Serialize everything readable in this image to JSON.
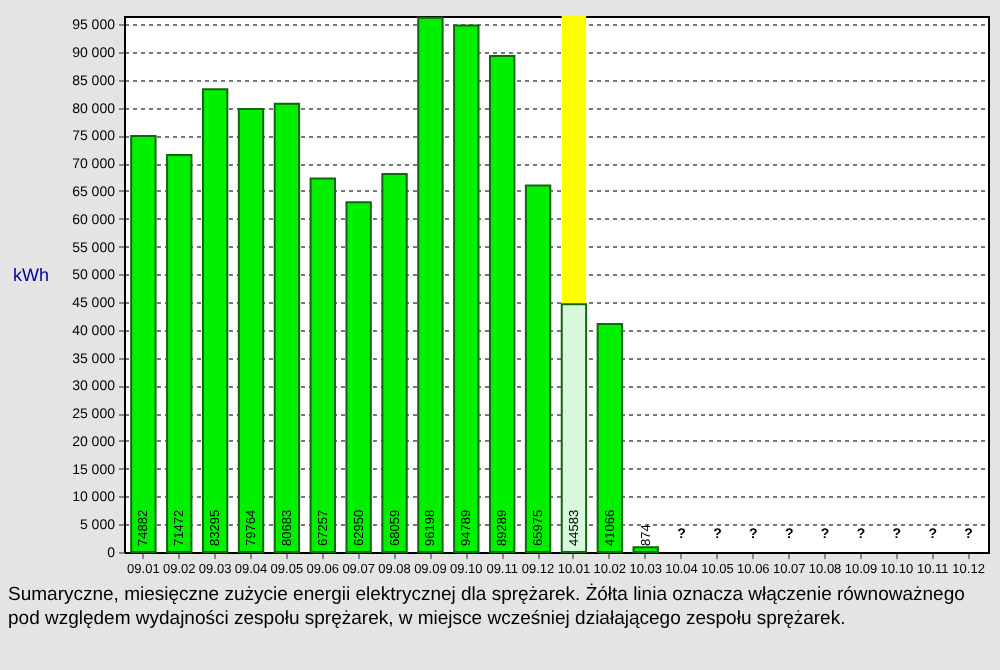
{
  "chart_data": {
    "type": "bar",
    "ylabel": "kWh",
    "categories": [
      "09.01",
      "09.02",
      "09.03",
      "09.04",
      "09.05",
      "09.06",
      "09.07",
      "09.08",
      "09.09",
      "09.10",
      "09.11",
      "09.12",
      "10.01",
      "10.02",
      "10.03",
      "10.04",
      "10.05",
      "10.06",
      "10.07",
      "10.08",
      "10.09",
      "10.10",
      "10.11",
      "10.12"
    ],
    "values": [
      74882,
      71472,
      83295,
      79764,
      80683,
      67257,
      62950,
      68059,
      96198,
      94789,
      89289,
      65975,
      44583,
      41066,
      874,
      null,
      null,
      null,
      null,
      null,
      null,
      null,
      null,
      null
    ],
    "value_labels": [
      "74882",
      "71472",
      "83295",
      "79764",
      "80683",
      "67257",
      "62950",
      "68059",
      "96198",
      "94789",
      "89289",
      "65975",
      "44583",
      "41066",
      "874",
      "?",
      "?",
      "?",
      "?",
      "?",
      "?",
      "?",
      "?",
      "?"
    ],
    "colors": [
      "#00f000",
      "#00f000",
      "#00f000",
      "#00f000",
      "#00f000",
      "#00f000",
      "#00f000",
      "#00f000",
      "#00f000",
      "#00f000",
      "#00f000",
      "#00f000",
      "#d8f8dc",
      "#00f000",
      "#00f000",
      "#00f000",
      "#00f000",
      "#00f000",
      "#00f000",
      "#00f000",
      "#00f000",
      "#00f000",
      "#00f000",
      "#00f000"
    ],
    "ylim": [
      0,
      96500
    ],
    "yticks": [
      {
        "value": 0,
        "label": "0"
      },
      {
        "value": 5000,
        "label": "5 000"
      },
      {
        "value": 10000,
        "label": "10 000"
      },
      {
        "value": 15000,
        "label": "15 000"
      },
      {
        "value": 20000,
        "label": "20 000"
      },
      {
        "value": 25000,
        "label": "25 000"
      },
      {
        "value": 30000,
        "label": "30 000"
      },
      {
        "value": 35000,
        "label": "35 000"
      },
      {
        "value": 40000,
        "label": "40 000"
      },
      {
        "value": 45000,
        "label": "45 000"
      },
      {
        "value": 50000,
        "label": "50 000"
      },
      {
        "value": 55000,
        "label": "55 000"
      },
      {
        "value": 60000,
        "label": "60 000"
      },
      {
        "value": 65000,
        "label": "65 000"
      },
      {
        "value": 70000,
        "label": "70 000"
      },
      {
        "value": 75000,
        "label": "75 000"
      },
      {
        "value": 80000,
        "label": "80 000"
      },
      {
        "value": 85000,
        "label": "85 000"
      },
      {
        "value": 90000,
        "label": "90 000"
      },
      {
        "value": 95000,
        "label": "95 000"
      }
    ],
    "grid": "y",
    "bands": [
      {
        "axis": "x",
        "from": "10.01",
        "to": "10.01",
        "color": "#ffff00"
      }
    ],
    "annotations": [
      "Sumaryczne, miesięczne zużycie energii elektrycznej dla sprężarek. Żółta linia oznacza włączenie równoważnego pod względem wydajności zespołu sprężarek, w miejsce wcześniej działającego zespołu sprężarek."
    ]
  }
}
